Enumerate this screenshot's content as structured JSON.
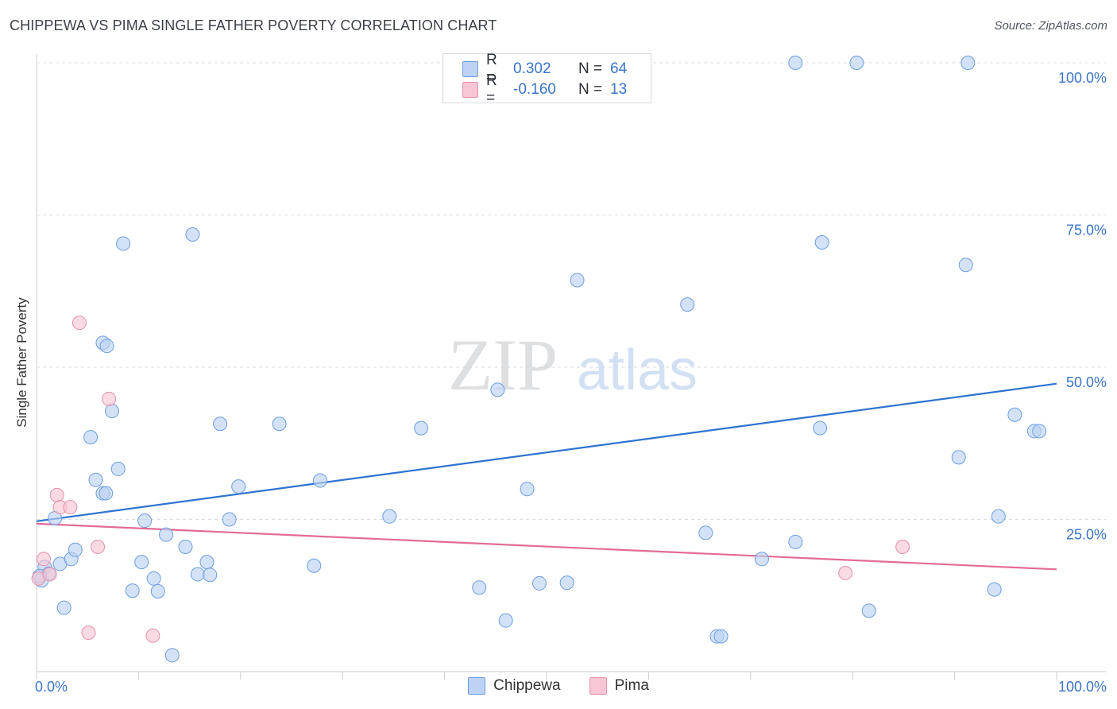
{
  "header": {
    "title": "CHIPPEWA VS PIMA SINGLE FATHER POVERTY CORRELATION CHART",
    "source": "Source: ZipAtlas.com"
  },
  "watermark": {
    "part1": "ZIP",
    "part2": "atlas"
  },
  "legend": {
    "rows": [
      {
        "r_label": "R =",
        "r_value": "0.302",
        "n_label": "N =",
        "n_value": "64"
      },
      {
        "r_label": "R =",
        "r_value": "-0.160",
        "n_label": "N =",
        "n_value": "13"
      }
    ],
    "bottom": [
      "Chippewa",
      "Pima"
    ]
  },
  "colors": {
    "chippewa_fill": "#bcd3f3",
    "chippewa_stroke": "#6d9ee0",
    "chippewa_line": "#2f73d0",
    "pima_fill": "#f8c6d4",
    "pima_stroke": "#e690ab",
    "pima_line": "#e36b95",
    "axis_text": "#3b74c8",
    "grid": "#d8dbe0"
  },
  "chart_data": {
    "type": "scatter",
    "title": "CHIPPEWA VS PIMA SINGLE FATHER POVERTY CORRELATION CHART",
    "xlabel": "",
    "ylabel": "Single Father Poverty",
    "xlim": [
      0,
      100
    ],
    "ylim": [
      0,
      100
    ],
    "x_tick_labels": [
      "0.0%",
      "100.0%"
    ],
    "y_ticks": [
      25,
      50,
      75,
      100
    ],
    "y_tick_labels": [
      "25.0%",
      "50.0%",
      "75.0%",
      "100.0%"
    ],
    "series": [
      {
        "name": "Chippewa",
        "R": 0.302,
        "N": 64,
        "trend": {
          "x": [
            0,
            100
          ],
          "y": [
            24.7,
            47.3
          ]
        },
        "points": [
          [
            0.5,
            15.0
          ],
          [
            0.8,
            17.2
          ],
          [
            1.2,
            16.1
          ],
          [
            1.8,
            25.2
          ],
          [
            2.3,
            17.7
          ],
          [
            2.7,
            10.5
          ],
          [
            3.4,
            18.5
          ],
          [
            3.8,
            20.0
          ],
          [
            5.3,
            38.5
          ],
          [
            5.8,
            31.5
          ],
          [
            6.5,
            29.3
          ],
          [
            6.8,
            29.3
          ],
          [
            6.5,
            54.0
          ],
          [
            6.9,
            53.5
          ],
          [
            7.4,
            42.8
          ],
          [
            8.0,
            33.3
          ],
          [
            8.5,
            70.3
          ],
          [
            9.4,
            13.3
          ],
          [
            10.3,
            18.0
          ],
          [
            10.6,
            24.8
          ],
          [
            11.5,
            15.3
          ],
          [
            11.9,
            13.2
          ],
          [
            12.7,
            22.5
          ],
          [
            13.3,
            2.7
          ],
          [
            14.6,
            20.5
          ],
          [
            15.3,
            71.8
          ],
          [
            15.8,
            16.0
          ],
          [
            16.7,
            18.0
          ],
          [
            17.0,
            15.9
          ],
          [
            18.0,
            40.7
          ],
          [
            18.9,
            25.0
          ],
          [
            19.8,
            30.4
          ],
          [
            23.8,
            40.7
          ],
          [
            27.2,
            17.4
          ],
          [
            27.8,
            31.4
          ],
          [
            34.6,
            25.5
          ],
          [
            37.7,
            40.0
          ],
          [
            43.4,
            13.8
          ],
          [
            45.2,
            46.3
          ],
          [
            46.0,
            8.4
          ],
          [
            48.1,
            30.0
          ],
          [
            49.3,
            14.5
          ],
          [
            52.0,
            14.6
          ],
          [
            53.0,
            64.3
          ],
          [
            63.8,
            60.3
          ],
          [
            65.6,
            22.8
          ],
          [
            66.7,
            5.8
          ],
          [
            67.1,
            5.8
          ],
          [
            71.1,
            18.5
          ],
          [
            74.4,
            21.3
          ],
          [
            74.4,
            100.0
          ],
          [
            77.0,
            70.5
          ],
          [
            76.8,
            40.0
          ],
          [
            80.4,
            100.0
          ],
          [
            81.6,
            10.0
          ],
          [
            91.1,
            66.8
          ],
          [
            91.3,
            100.0
          ],
          [
            90.4,
            35.2
          ],
          [
            94.3,
            25.5
          ],
          [
            93.9,
            13.5
          ],
          [
            95.9,
            42.2
          ],
          [
            97.8,
            39.5
          ],
          [
            98.3,
            39.5
          ],
          [
            0.3,
            15.7
          ]
        ]
      },
      {
        "name": "Pima",
        "R": -0.16,
        "N": 13,
        "trend": {
          "x": [
            0,
            100
          ],
          "y": [
            24.3,
            16.8
          ]
        },
        "points": [
          [
            0.2,
            15.3
          ],
          [
            0.7,
            18.5
          ],
          [
            1.3,
            16.0
          ],
          [
            2.0,
            29.0
          ],
          [
            2.3,
            27.0
          ],
          [
            3.3,
            27.0
          ],
          [
            4.2,
            57.3
          ],
          [
            5.1,
            6.4
          ],
          [
            6.0,
            20.5
          ],
          [
            7.1,
            44.8
          ],
          [
            11.4,
            5.9
          ],
          [
            79.3,
            16.2
          ],
          [
            84.9,
            20.5
          ]
        ]
      }
    ]
  }
}
